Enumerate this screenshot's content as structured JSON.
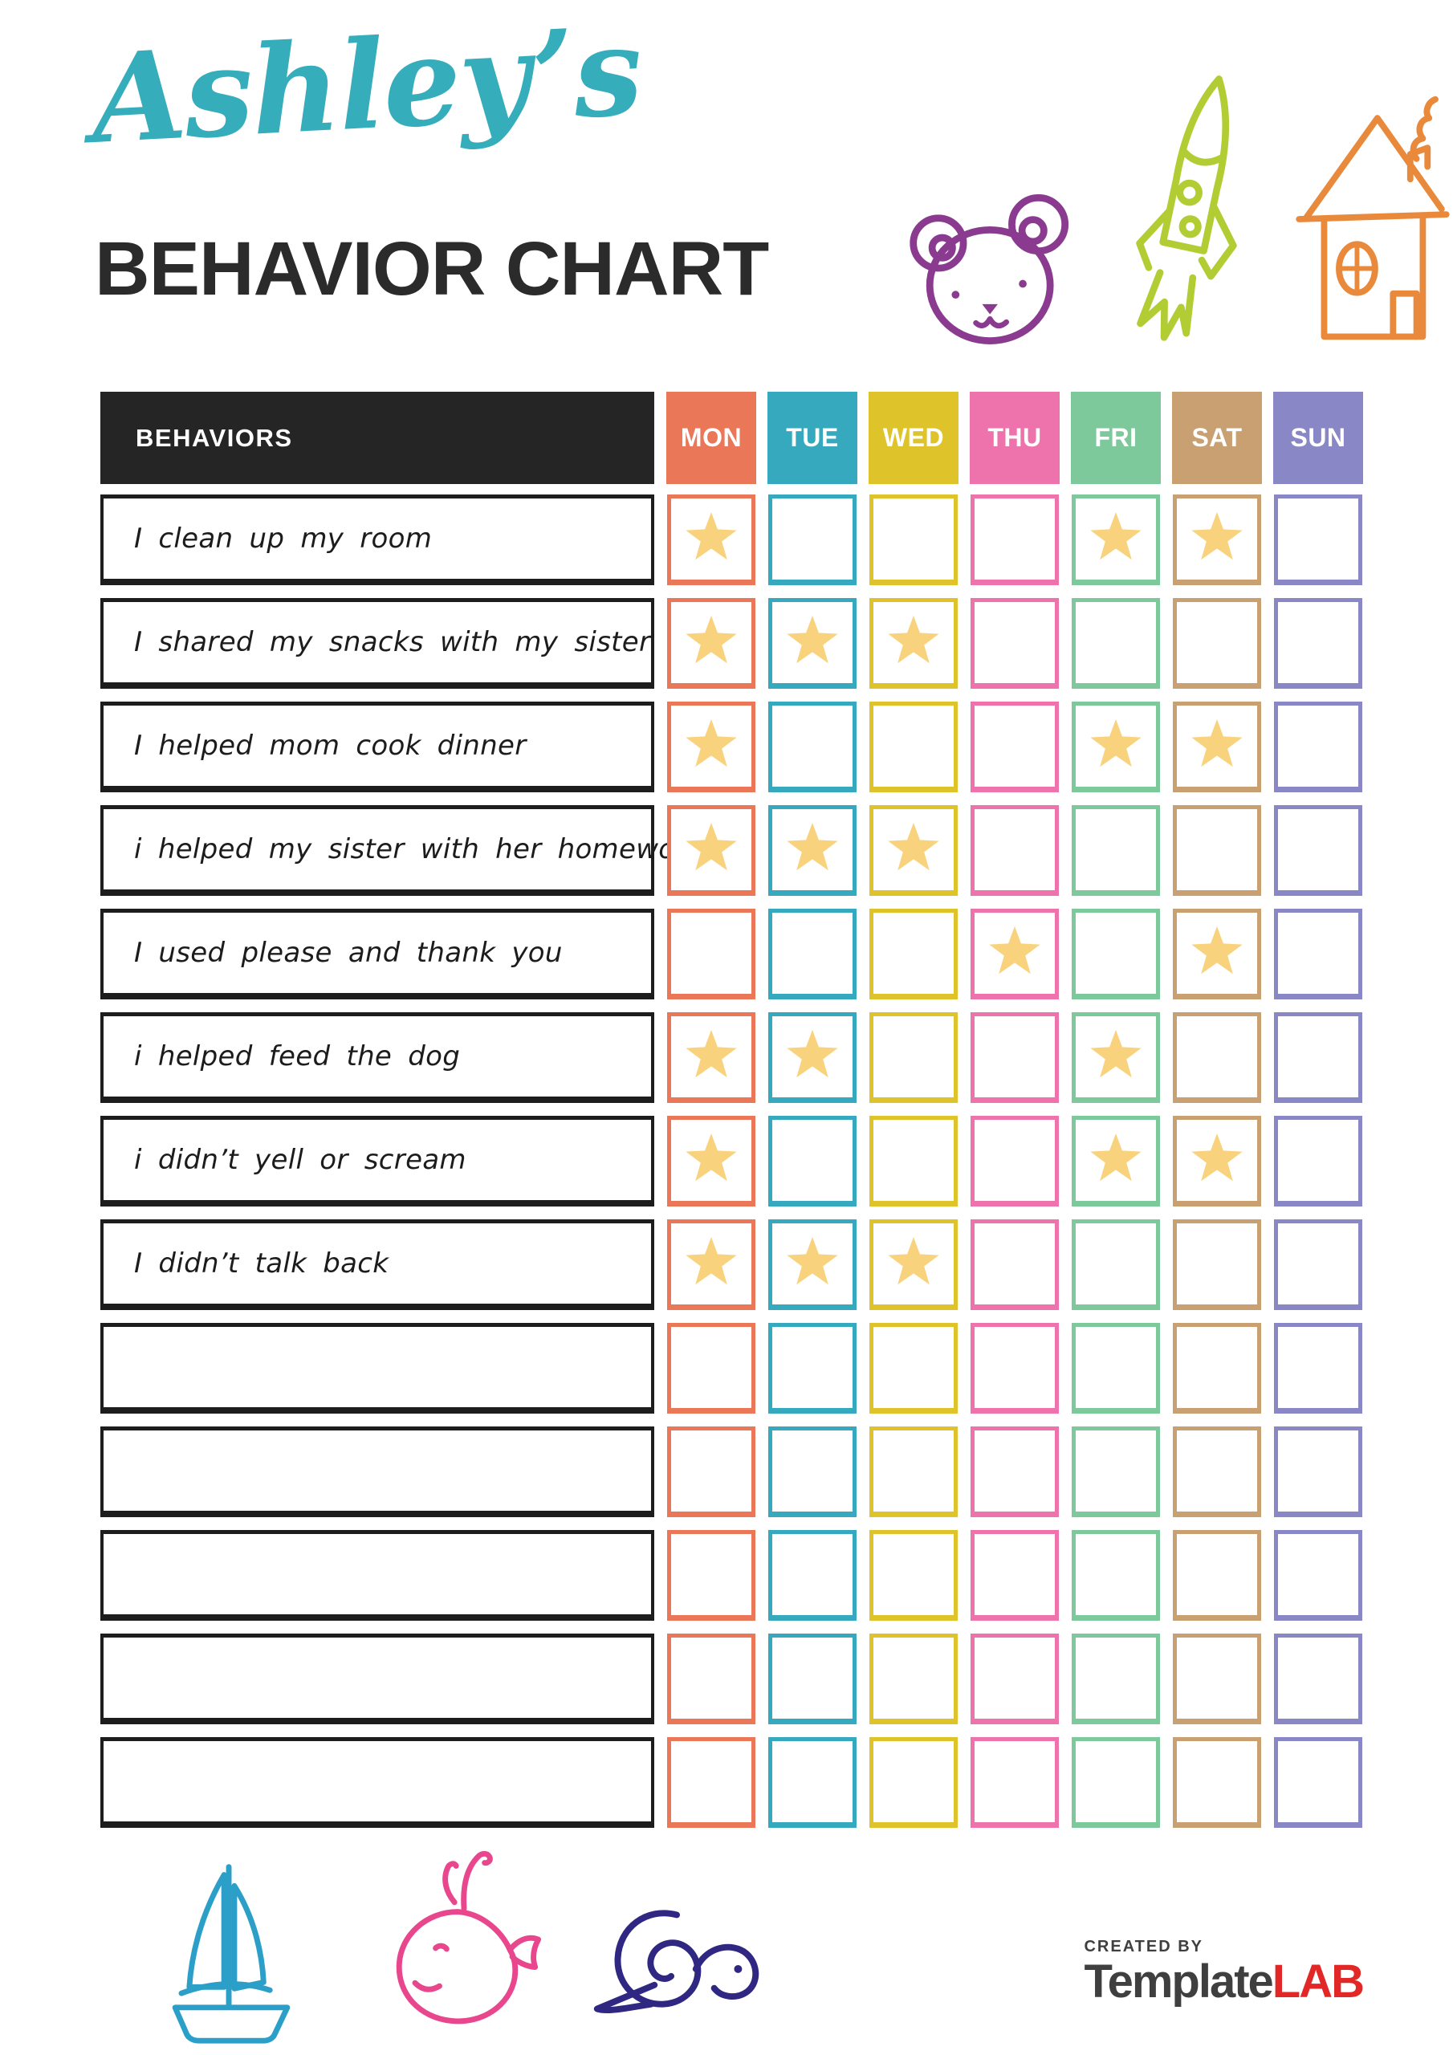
{
  "header": {
    "name_script": "Ashley’s",
    "title": "BEHAVIOR CHART",
    "accent_color": "#35ADBB",
    "title_color": "#2B2B2B",
    "doodles": [
      {
        "icon": "bear-icon",
        "color": "#8A3A8F"
      },
      {
        "icon": "rocket-icon",
        "color": "#B2CC33"
      },
      {
        "icon": "house-icon",
        "color": "#E8893B"
      }
    ]
  },
  "table": {
    "behaviors_header": "BEHAVIORS",
    "header_bg": "#252525",
    "header_text_color": "#FFFFFF",
    "star_color": "#F8D27C",
    "days": [
      {
        "label": "MON",
        "color": "#E97758"
      },
      {
        "label": "TUE",
        "color": "#36A9BE"
      },
      {
        "label": "WED",
        "color": "#DEC32B"
      },
      {
        "label": "THU",
        "color": "#EE72AC"
      },
      {
        "label": "FRI",
        "color": "#7EC99B"
      },
      {
        "label": "SAT",
        "color": "#C8A071"
      },
      {
        "label": "SUN",
        "color": "#8A87C6"
      }
    ],
    "rows": [
      {
        "label": "I clean up my room",
        "stars": [
          "MON",
          "FRI",
          "SAT"
        ]
      },
      {
        "label": "I shared my snacks with my sister",
        "stars": [
          "MON",
          "TUE",
          "WED"
        ]
      },
      {
        "label": "I helped mom cook dinner",
        "stars": [
          "MON",
          "FRI",
          "SAT"
        ]
      },
      {
        "label": "i helped my sister with her homework",
        "stars": [
          "MON",
          "TUE",
          "WED"
        ]
      },
      {
        "label": "I used please and thank you",
        "stars": [
          "THU",
          "SAT"
        ]
      },
      {
        "label": "i helped feed the dog",
        "stars": [
          "MON",
          "TUE",
          "FRI"
        ]
      },
      {
        "label": "i didn’t yell or scream",
        "stars": [
          "MON",
          "FRI",
          "SAT"
        ]
      },
      {
        "label": "I didn’t talk back",
        "stars": [
          "MON",
          "TUE",
          "WED"
        ]
      },
      {
        "label": "",
        "stars": []
      },
      {
        "label": "",
        "stars": []
      },
      {
        "label": "",
        "stars": []
      },
      {
        "label": "",
        "stars": []
      },
      {
        "label": "",
        "stars": []
      }
    ]
  },
  "footer": {
    "doodles": [
      {
        "icon": "sailboat-icon",
        "color": "#2B9FC8"
      },
      {
        "icon": "whale-icon",
        "color": "#E8478D"
      },
      {
        "icon": "snail-icon",
        "color": "#2F2782"
      }
    ],
    "logo": {
      "created_by": "CREATED BY",
      "brand": "Template",
      "brand_suffix": "LAB",
      "brand_color": "#3F3F3F",
      "suffix_color": "#E12826"
    }
  }
}
